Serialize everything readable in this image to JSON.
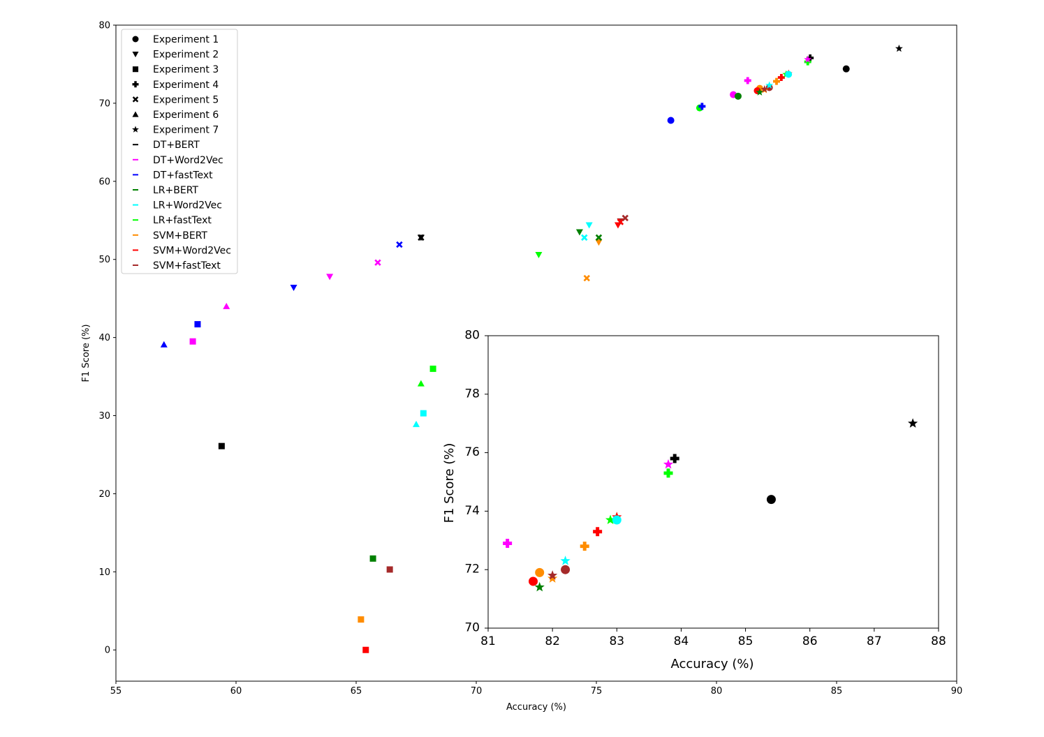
{
  "chart_data": {
    "type": "scatter",
    "xlabel": "Accuracy (%)",
    "ylabel": "F1 Score (%)",
    "xlim": [
      55,
      90
    ],
    "ylim": [
      -4,
      80
    ],
    "xticks": [
      55,
      60,
      65,
      70,
      75,
      80,
      85,
      90
    ],
    "yticks": [
      0,
      10,
      20,
      30,
      40,
      50,
      60,
      70,
      80
    ],
    "grid": false,
    "legend_position": "top-left",
    "legend": {
      "experiments": [
        {
          "name": "Experiment 1",
          "marker": "circle"
        },
        {
          "name": "Experiment 2",
          "marker": "triangle-down"
        },
        {
          "name": "Experiment 3",
          "marker": "square"
        },
        {
          "name": "Experiment 4",
          "marker": "plus"
        },
        {
          "name": "Experiment 5",
          "marker": "x"
        },
        {
          "name": "Experiment 6",
          "marker": "triangle-up"
        },
        {
          "name": "Experiment 7",
          "marker": "star"
        }
      ],
      "models": [
        {
          "name": "DT+BERT",
          "color": "#000000"
        },
        {
          "name": "DT+Word2Vec",
          "color": "#ff00ff"
        },
        {
          "name": "DT+fastText",
          "color": "#0000ff"
        },
        {
          "name": "LR+BERT",
          "color": "#008000"
        },
        {
          "name": "LR+Word2Vec",
          "color": "#00ffff"
        },
        {
          "name": "LR+fastText",
          "color": "#00ff00"
        },
        {
          "name": "SVM+BERT",
          "color": "#ff8c00"
        },
        {
          "name": "SVM+Word2Vec",
          "color": "#ff0000"
        },
        {
          "name": "SVM+fastText",
          "color": "#a52a2a"
        }
      ]
    },
    "points": [
      {
        "exp": 1,
        "model": "DT+BERT",
        "x": 85.4,
        "y": 74.4
      },
      {
        "exp": 1,
        "model": "DT+Word2Vec",
        "x": 80.7,
        "y": 71.1
      },
      {
        "exp": 1,
        "model": "DT+fastText",
        "x": 78.1,
        "y": 67.8
      },
      {
        "exp": 1,
        "model": "LR+BERT",
        "x": 80.9,
        "y": 70.9
      },
      {
        "exp": 1,
        "model": "LR+fastText",
        "x": 79.3,
        "y": 69.4
      },
      {
        "exp": 1,
        "model": "SVM+BERT",
        "x": 81.8,
        "y": 71.9
      },
      {
        "exp": 1,
        "model": "SVM+Word2Vec",
        "x": 81.7,
        "y": 71.6
      },
      {
        "exp": 1,
        "model": "SVM+fastText",
        "x": 82.2,
        "y": 72.0
      },
      {
        "exp": 2,
        "model": "DT+BERT",
        "x": 67.7,
        "y": 52.8
      },
      {
        "exp": 2,
        "model": "DT+Word2Vec",
        "x": 63.9,
        "y": 47.8
      },
      {
        "exp": 2,
        "model": "DT+fastText",
        "x": 62.4,
        "y": 46.4
      },
      {
        "exp": 2,
        "model": "LR+BERT",
        "x": 74.3,
        "y": 53.5
      },
      {
        "exp": 2,
        "model": "LR+Word2Vec",
        "x": 74.7,
        "y": 54.4
      },
      {
        "exp": 2,
        "model": "LR+fastText",
        "x": 72.6,
        "y": 50.6
      },
      {
        "exp": 2,
        "model": "SVM+BERT",
        "x": 75.1,
        "y": 52.2
      },
      {
        "exp": 2,
        "model": "SVM+Word2Vec",
        "x": 75.9,
        "y": 54.4
      },
      {
        "exp": 2,
        "model": "SVM+fastText",
        "x": 76.0,
        "y": 54.9
      },
      {
        "exp": 3,
        "model": "DT+BERT",
        "x": 59.4,
        "y": 26.1
      },
      {
        "exp": 3,
        "model": "DT+Word2Vec",
        "x": 58.2,
        "y": 39.5
      },
      {
        "exp": 3,
        "model": "DT+fastText",
        "x": 58.4,
        "y": 41.7
      },
      {
        "exp": 3,
        "model": "LR+BERT",
        "x": 65.7,
        "y": 11.7
      },
      {
        "exp": 3,
        "model": "LR+Word2Vec",
        "x": 67.8,
        "y": 30.3
      },
      {
        "exp": 3,
        "model": "LR+fastText",
        "x": 68.2,
        "y": 36.0
      },
      {
        "exp": 3,
        "model": "SVM+BERT",
        "x": 65.2,
        "y": 3.9
      },
      {
        "exp": 3,
        "model": "SVM+Word2Vec",
        "x": 65.4,
        "y": 0.0
      },
      {
        "exp": 3,
        "model": "SVM+fastText",
        "x": 66.4,
        "y": 10.3
      },
      {
        "exp": 4,
        "model": "DT+BERT",
        "x": 83.9,
        "y": 75.8
      },
      {
        "exp": 4,
        "model": "DT+Word2Vec",
        "x": 81.3,
        "y": 72.9
      },
      {
        "exp": 4,
        "model": "DT+fastText",
        "x": 79.4,
        "y": 69.6
      },
      {
        "exp": 4,
        "model": "LR+fastText",
        "x": 83.8,
        "y": 75.3
      },
      {
        "exp": 4,
        "model": "SVM+BERT",
        "x": 82.5,
        "y": 72.8
      },
      {
        "exp": 4,
        "model": "SVM+Word2Vec",
        "x": 82.7,
        "y": 73.3
      },
      {
        "exp": 5,
        "model": "DT+BERT",
        "x": 67.7,
        "y": 52.8
      },
      {
        "exp": 5,
        "model": "DT+Word2Vec",
        "x": 65.9,
        "y": 49.6
      },
      {
        "exp": 5,
        "model": "DT+fastText",
        "x": 66.8,
        "y": 51.9
      },
      {
        "exp": 5,
        "model": "LR+BERT",
        "x": 75.1,
        "y": 52.8
      },
      {
        "exp": 5,
        "model": "LR+Word2Vec",
        "x": 74.5,
        "y": 52.8
      },
      {
        "exp": 5,
        "model": "SVM+BERT",
        "x": 74.6,
        "y": 47.6
      },
      {
        "exp": 5,
        "model": "SVM+Word2Vec",
        "x": 76.0,
        "y": 54.8
      },
      {
        "exp": 5,
        "model": "SVM+fastText",
        "x": 76.2,
        "y": 55.3
      },
      {
        "exp": 6,
        "model": "DT+Word2Vec",
        "x": 59.6,
        "y": 44.0
      },
      {
        "exp": 6,
        "model": "DT+fastText",
        "x": 57.0,
        "y": 39.1
      },
      {
        "exp": 6,
        "model": "LR+Word2Vec",
        "x": 67.5,
        "y": 28.9
      },
      {
        "exp": 6,
        "model": "LR+fastText",
        "x": 67.7,
        "y": 34.1
      },
      {
        "exp": 7,
        "model": "DT+Word2Vec",
        "x": 83.8,
        "y": 75.6
      },
      {
        "exp": 7,
        "model": "LR+BERT",
        "x": 81.8,
        "y": 71.4
      },
      {
        "exp": 7,
        "model": "LR+Word2Vec",
        "x": 82.2,
        "y": 72.3
      },
      {
        "exp": 7,
        "model": "LR+fastText",
        "x": 82.9,
        "y": 73.7
      },
      {
        "exp": 7,
        "model": "SVM+BERT",
        "x": 82.0,
        "y": 71.7
      },
      {
        "exp": 7,
        "model": "SVM+Word2Vec",
        "x": 83.0,
        "y": 73.8
      },
      {
        "exp": 7,
        "model": "SVM+fastText",
        "x": 82.0,
        "y": 71.8
      },
      {
        "exp": 7,
        "model": "DT+BERT",
        "x": 87.6,
        "y": 77.0
      },
      {
        "exp": 1,
        "model": "LR+Word2Vec",
        "x": 83.0,
        "y": 73.7
      }
    ],
    "inset": {
      "xlabel": "Accuracy (%)",
      "ylabel": "F1 Score (%)",
      "xlim": [
        81,
        88
      ],
      "ylim": [
        70,
        80
      ],
      "xticks": [
        81,
        82,
        83,
        84,
        85,
        86,
        87,
        88
      ],
      "yticks": [
        70,
        72,
        74,
        76,
        78,
        80
      ]
    }
  }
}
